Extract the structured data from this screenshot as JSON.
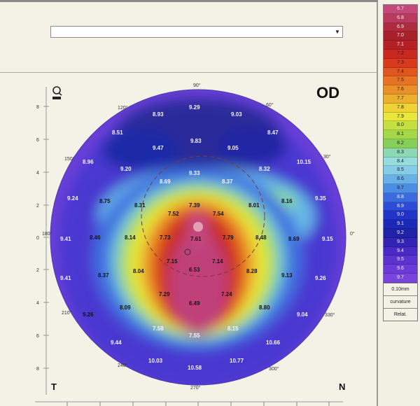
{
  "window": {
    "eye": "OD",
    "corner_left": "T",
    "corner_right": "N",
    "dropdown_value": ""
  },
  "axis": {
    "y_ticks": [
      "8",
      "6",
      "4",
      "2",
      "0",
      "2",
      "4",
      "6",
      "8"
    ],
    "angles": [
      "90°",
      "120°",
      "60°",
      "150°",
      "30°",
      "180°",
      "0°",
      "210°",
      "330°",
      "240°",
      "300°",
      "270°"
    ]
  },
  "map_values": [
    "8.93",
    "9.29",
    "9.03",
    "8.51",
    "9.47",
    "9.83",
    "9.05",
    "8.47",
    "8.96",
    "9.20",
    "9.33",
    "8.32",
    "10.15",
    "8.69",
    "8.37",
    "9.24",
    "8.75",
    "8.31",
    "7.39",
    "8.01",
    "8.16",
    "9.35",
    "7.52",
    "7.54",
    "9.41",
    "8.46",
    "8.14",
    "7.73",
    "7.61",
    "7.79",
    "8.48",
    "8.69",
    "9.15",
    "7.15",
    "7.14",
    "9.41",
    "8.37",
    "8.04",
    "6.53",
    "8.28",
    "9.13",
    "9.26",
    "7.29",
    "7.24",
    "8.09",
    "6.49",
    "8.80",
    "9.26",
    "9.04",
    "7.58",
    "7.55",
    "8.15",
    "9.44",
    "10.66",
    "10.03",
    "10.77",
    "10.58"
  ],
  "legend": {
    "values": [
      "6.7",
      "6.8",
      "6.9",
      "7.0",
      "7.1",
      "7.2",
      "7.3",
      "7.4",
      "7.5",
      "7.6",
      "7.7",
      "7.8",
      "7.9",
      "8.0",
      "8.1",
      "8.2",
      "8.3",
      "8.4",
      "8.5",
      "8.6",
      "8.7",
      "8.8",
      "8.9",
      "9.0",
      "9.1",
      "9.2",
      "9.3",
      "9.4",
      "9.5",
      "9.6",
      "9.7"
    ],
    "colors": [
      "#c5487a",
      "#b83a5e",
      "#b02a3e",
      "#a8202a",
      "#b52024",
      "#c82820",
      "#d83a1e",
      "#e0561e",
      "#e67424",
      "#ea9028",
      "#ecb02e",
      "#eed236",
      "#e8e83c",
      "#c4e040",
      "#a4d848",
      "#86d05a",
      "#8cd8b4",
      "#96dcdc",
      "#86cce6",
      "#68b0e6",
      "#4c8ee4",
      "#3a6ce0",
      "#2c4cd8",
      "#2234c8",
      "#1c28b6",
      "#2022a8",
      "#3424b4",
      "#4a2ac4",
      "#5c32d0",
      "#6c3ad8",
      "#7a44dc"
    ],
    "step": "0.10mm",
    "mode": "curvature",
    "type": "Relat."
  }
}
